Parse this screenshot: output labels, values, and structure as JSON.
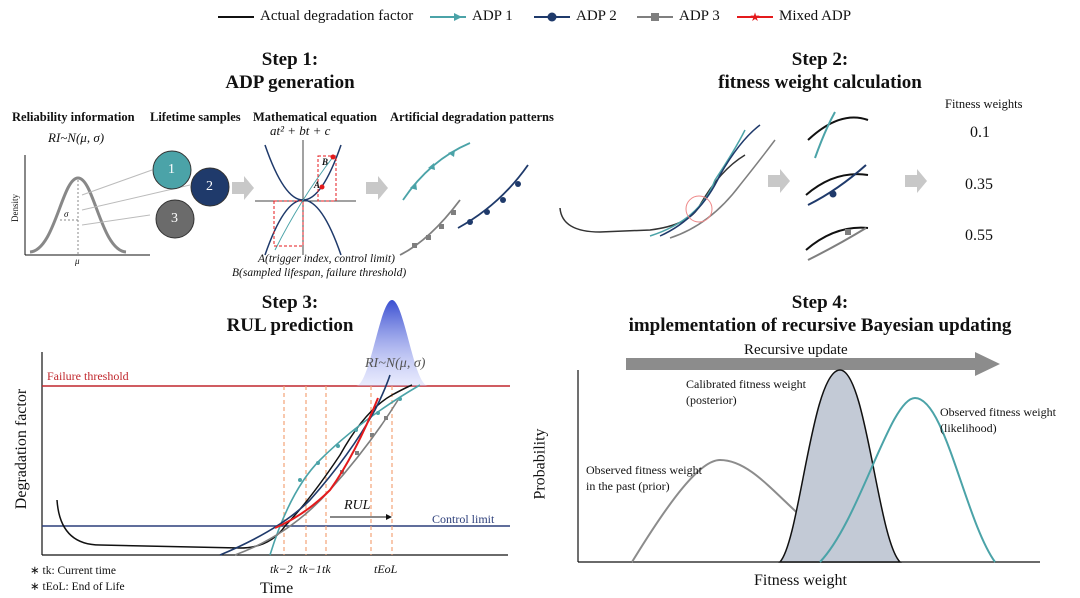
{
  "legend": [
    {
      "label": "Actual degradation factor",
      "color": "#111111",
      "marker": "none"
    },
    {
      "label": "ADP 1",
      "color": "#4ba3a8",
      "marker": "arrow"
    },
    {
      "label": "ADP 2",
      "color": "#1f3a6b",
      "marker": "circle"
    },
    {
      "label": "ADP 3",
      "color": "#7f7f7f",
      "marker": "square"
    },
    {
      "label": "Mixed ADP",
      "color": "#e41a1c",
      "marker": "star"
    }
  ],
  "step1": {
    "title": "Step 1:",
    "subtitle": "ADP generation",
    "col_reliability": "Reliability information",
    "ri_formula": "RI~N(μ, σ)",
    "col_samples": "Lifetime samples",
    "col_equation": "Mathematical equation",
    "equation": "at² + bt + c",
    "col_patterns": "Artificial degradation patterns",
    "density_label": "Density",
    "sigma": "σ",
    "mu": "μ",
    "sample_1": "1",
    "sample_2": "2",
    "sample_3": "3",
    "point_a": "A",
    "point_b": "B",
    "note_a": "A(trigger index, control limit)",
    "note_b": "B(sampled lifespan, failure threshold)"
  },
  "step2": {
    "title": "Step 2:",
    "subtitle": "fitness weight calculation",
    "weights_header": "Fitness weights",
    "weights": [
      "0.1",
      "0.35",
      "0.55"
    ]
  },
  "step3": {
    "title": "Step 3:",
    "subtitle": "RUL prediction",
    "failure_threshold": "Failure threshold",
    "control_limit": "Control limit",
    "ylabel": "Degradation factor",
    "xlabel": "Time",
    "rul": "RUL",
    "ri_formula": "RI~N(μ, σ)",
    "tick_k2": "tk−2",
    "tick_k1": "tk−1",
    "tick_k": "tk",
    "tick_eol": "tEoL",
    "note_tk": "∗ tk: Current time",
    "note_teol": "∗ tEoL: End of Life"
  },
  "step4": {
    "title": "Step 4:",
    "subtitle": "implementation of recursive Bayesian updating",
    "arrow_label": "Recursive update",
    "ylabel": "Probability",
    "xlabel": "Fitness weight",
    "posterior": "Calibrated fitness weight\n(posterior)",
    "likelihood": "Observed fitness weight\n(likelihood)",
    "prior": "Observed fitness weight\nin the past (prior)"
  }
}
